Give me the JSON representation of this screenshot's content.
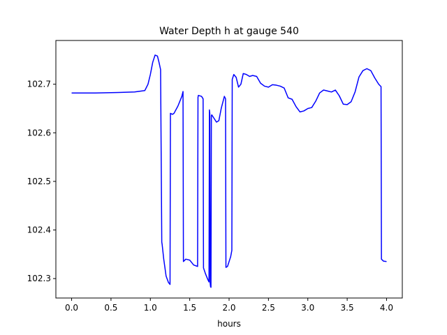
{
  "chart_data": {
    "type": "line",
    "title": "Water Depth h at gauge 540",
    "xlabel": "hours",
    "ylabel": "",
    "xlim": [
      -0.2,
      4.2
    ],
    "ylim": [
      102.26,
      102.79
    ],
    "xticks": [
      0.0,
      0.5,
      1.0,
      1.5,
      2.0,
      2.5,
      3.0,
      3.5,
      4.0
    ],
    "xtick_labels": [
      "0.0",
      "0.5",
      "1.0",
      "1.5",
      "2.0",
      "2.5",
      "3.0",
      "3.5",
      "4.0"
    ],
    "yticks": [
      102.3,
      102.4,
      102.5,
      102.6,
      102.7
    ],
    "ytick_labels": [
      "102.3",
      "102.4",
      "102.5",
      "102.6",
      "102.7"
    ],
    "grid": false,
    "series": [
      {
        "color": "#0000ff",
        "x": [
          0.0,
          0.3,
          0.6,
          0.8,
          0.93,
          0.97,
          1.0,
          1.03,
          1.06,
          1.09,
          1.11,
          1.13,
          1.145,
          1.15,
          1.17,
          1.2,
          1.23,
          1.25,
          1.255,
          1.28,
          1.3,
          1.35,
          1.4,
          1.415,
          1.42,
          1.45,
          1.5,
          1.55,
          1.6,
          1.605,
          1.61,
          1.65,
          1.67,
          1.675,
          1.7,
          1.73,
          1.745,
          1.75,
          1.755,
          1.76,
          1.765,
          1.77,
          1.775,
          1.78,
          1.8,
          1.84,
          1.87,
          1.9,
          1.94,
          1.955,
          1.96,
          1.98,
          2.02,
          2.035,
          2.04,
          2.06,
          2.09,
          2.12,
          2.15,
          2.18,
          2.22,
          2.26,
          2.3,
          2.35,
          2.4,
          2.45,
          2.5,
          2.55,
          2.6,
          2.65,
          2.7,
          2.75,
          2.8,
          2.85,
          2.9,
          2.95,
          3.0,
          3.05,
          3.1,
          3.15,
          3.2,
          3.25,
          3.3,
          3.35,
          3.4,
          3.45,
          3.5,
          3.55,
          3.6,
          3.65,
          3.7,
          3.75,
          3.8,
          3.85,
          3.9,
          3.93,
          3.935,
          3.96,
          4.0
        ],
        "y": [
          102.682,
          102.682,
          102.683,
          102.684,
          102.687,
          102.7,
          102.72,
          102.745,
          102.76,
          102.758,
          102.745,
          102.73,
          102.375,
          102.37,
          102.34,
          102.305,
          102.292,
          102.288,
          102.64,
          102.638,
          102.64,
          102.655,
          102.675,
          102.685,
          102.335,
          102.34,
          102.338,
          102.328,
          102.325,
          102.673,
          102.677,
          102.675,
          102.67,
          102.322,
          102.31,
          102.298,
          102.293,
          102.647,
          102.64,
          102.29,
          102.283,
          102.282,
          102.635,
          102.637,
          102.632,
          102.622,
          102.625,
          102.65,
          102.675,
          102.67,
          102.323,
          102.325,
          102.345,
          102.358,
          102.71,
          102.72,
          102.714,
          102.694,
          102.7,
          102.722,
          102.72,
          102.716,
          102.718,
          102.716,
          102.702,
          102.696,
          102.694,
          102.699,
          102.698,
          102.696,
          102.692,
          102.672,
          102.669,
          102.654,
          102.643,
          102.645,
          102.65,
          102.652,
          102.665,
          102.682,
          102.688,
          102.686,
          102.684,
          102.688,
          102.676,
          102.659,
          102.658,
          102.664,
          102.684,
          102.715,
          102.728,
          102.732,
          102.728,
          102.713,
          102.7,
          102.695,
          102.34,
          102.336,
          102.335
        ]
      }
    ]
  }
}
